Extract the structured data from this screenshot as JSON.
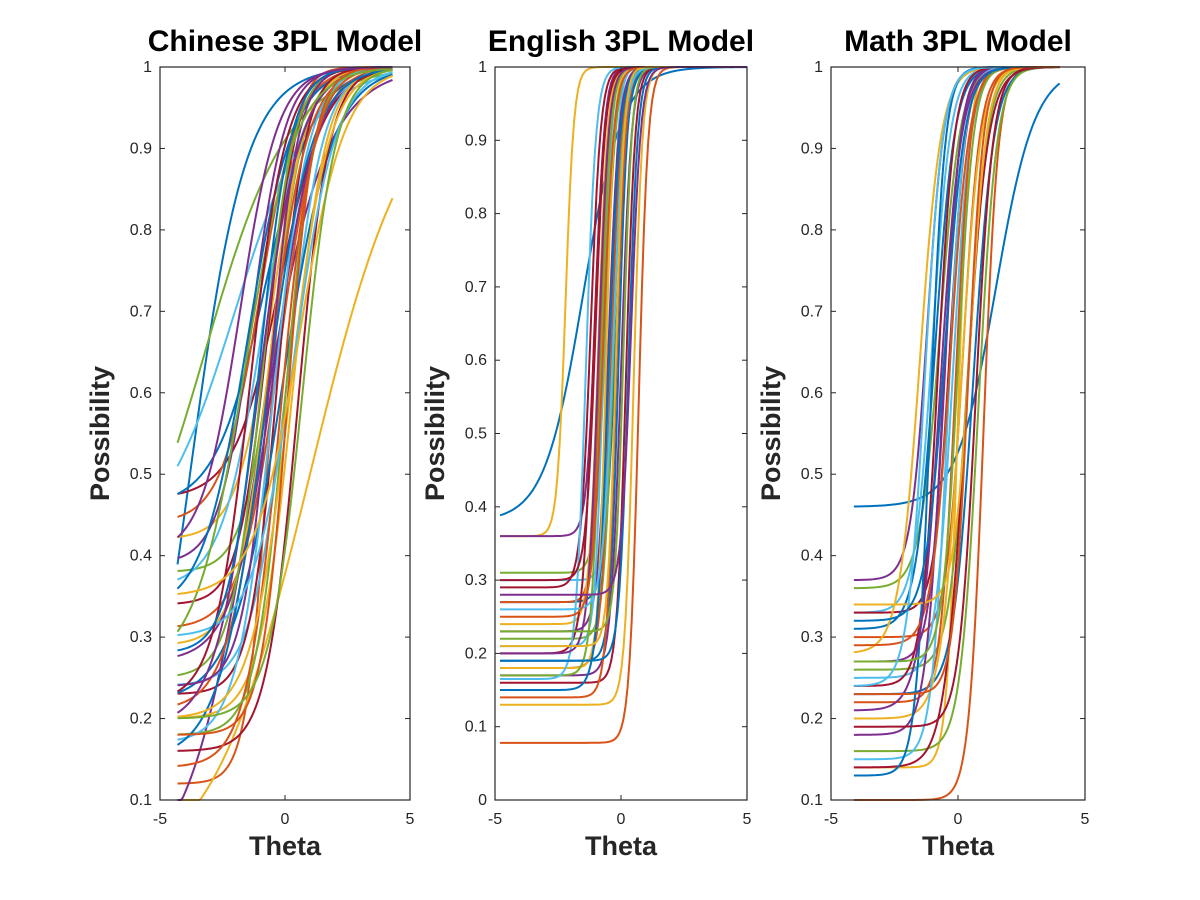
{
  "chart_data": [
    {
      "type": "line",
      "title": "Chinese 3PL Model",
      "xlabel": "Theta",
      "ylabel": "Possibility",
      "xlim": [
        -5,
        5
      ],
      "ylim": [
        0.1,
        1
      ],
      "xticks": [
        -5,
        0,
        5
      ],
      "yticks": [
        0.1,
        0.2,
        0.3,
        0.4,
        0.5,
        0.6,
        0.7,
        0.8,
        0.9,
        1
      ],
      "ytick_labels": [
        "0.1",
        "0.2",
        "0.3",
        "0.4",
        "0.5",
        "0.6",
        "0.7",
        "0.8",
        "0.9",
        "1"
      ],
      "grid": false,
      "x_range": [
        -4.3,
        4.3
      ],
      "series_model": "P(theta) = c + (1 - c) / (1 + exp(-a * (theta - b)))",
      "series": [
        {
          "a": 0.9,
          "b": -3.8,
          "c": 0.0
        },
        {
          "a": 2.2,
          "b": -0.6,
          "c": 0.12
        },
        {
          "a": 0.5,
          "b": 1.0,
          "c": 0.0
        },
        {
          "a": 0.75,
          "b": -1.2,
          "c": 0.0
        },
        {
          "a": 0.6,
          "b": -3.2,
          "c": 0.3
        },
        {
          "a": 0.65,
          "b": -2.0,
          "c": 0.4
        },
        {
          "a": 1.1,
          "b": -0.2,
          "c": 0.47
        },
        {
          "a": 1.0,
          "b": -0.8,
          "c": 0.46
        },
        {
          "a": 1.3,
          "b": -1.0,
          "c": 0.44
        },
        {
          "a": 1.4,
          "b": -0.5,
          "c": 0.42
        },
        {
          "a": 1.5,
          "b": -1.3,
          "c": 0.39
        },
        {
          "a": 1.6,
          "b": -0.4,
          "c": 0.38
        },
        {
          "a": 1.2,
          "b": -0.9,
          "c": 0.36
        },
        {
          "a": 1.7,
          "b": -0.7,
          "c": 0.34
        },
        {
          "a": 1.1,
          "b": -1.5,
          "c": 0.33
        },
        {
          "a": 1.3,
          "b": -0.2,
          "c": 0.31
        },
        {
          "a": 1.5,
          "b": -0.6,
          "c": 0.29
        },
        {
          "a": 1.2,
          "b": -0.4,
          "c": 0.27
        },
        {
          "a": 1.6,
          "b": -0.9,
          "c": 0.25
        },
        {
          "a": 1.4,
          "b": 0.1,
          "c": 0.24
        },
        {
          "a": 1.8,
          "b": -0.3,
          "c": 0.23
        },
        {
          "a": 1.0,
          "b": -0.1,
          "c": 0.22
        },
        {
          "a": 1.3,
          "b": -0.7,
          "c": 0.21
        },
        {
          "a": 1.5,
          "b": 0.3,
          "c": 0.2
        },
        {
          "a": 1.2,
          "b": -1.1,
          "c": 0.19
        },
        {
          "a": 1.7,
          "b": 0.0,
          "c": 0.18
        },
        {
          "a": 1.4,
          "b": -0.5,
          "c": 0.17
        },
        {
          "a": 1.6,
          "b": 0.5,
          "c": 0.16
        },
        {
          "a": 1.1,
          "b": -0.8,
          "c": 0.15
        },
        {
          "a": 1.5,
          "b": -0.2,
          "c": 0.14
        },
        {
          "a": 1.3,
          "b": 0.2,
          "c": 0.2
        },
        {
          "a": 1.8,
          "b": -0.6,
          "c": 0.24
        },
        {
          "a": 1.0,
          "b": -1.6,
          "c": 0.26
        },
        {
          "a": 1.2,
          "b": 0.4,
          "c": 0.3
        },
        {
          "a": 1.4,
          "b": -1.4,
          "c": 0.22
        },
        {
          "a": 1.6,
          "b": -1.0,
          "c": 0.28
        },
        {
          "a": 1.9,
          "b": 0.1,
          "c": 0.18
        },
        {
          "a": 1.1,
          "b": 0.6,
          "c": 0.35
        },
        {
          "a": 1.3,
          "b": -1.8,
          "c": 0.4
        },
        {
          "a": 1.5,
          "b": 0.7,
          "c": 0.2
        }
      ]
    },
    {
      "type": "line",
      "title": "English 3PL Model",
      "xlabel": "Theta",
      "ylabel": "Possibility",
      "xlim": [
        -5,
        5
      ],
      "ylim": [
        0,
        1
      ],
      "xticks": [
        -5,
        0,
        5
      ],
      "yticks": [
        0,
        0.1,
        0.2,
        0.3,
        0.4,
        0.5,
        0.6,
        0.7,
        0.8,
        0.9,
        1
      ],
      "ytick_labels": [
        "0",
        "0.1",
        "0.2",
        "0.3",
        "0.4",
        "0.5",
        "0.6",
        "0.7",
        "0.8",
        "0.9",
        "1"
      ],
      "grid": false,
      "x_range": [
        -4.8,
        5.0
      ],
      "series_model": "P(theta) = c + (1 - c) / (1 + exp(-a * (theta - b)))",
      "series": [
        {
          "a": 1.3,
          "b": -1.5,
          "c": 0.38
        },
        {
          "a": 5.5,
          "b": 0.7,
          "c": 0.078
        },
        {
          "a": 6.0,
          "b": -2.2,
          "c": 0.36
        },
        {
          "a": 5.5,
          "b": -1.0,
          "c": 0.36
        },
        {
          "a": 5.0,
          "b": -0.6,
          "c": 0.31
        },
        {
          "a": 6.5,
          "b": -0.4,
          "c": 0.3
        },
        {
          "a": 5.0,
          "b": -1.2,
          "c": 0.29
        },
        {
          "a": 4.5,
          "b": -0.2,
          "c": 0.27
        },
        {
          "a": 6.0,
          "b": -0.8,
          "c": 0.27
        },
        {
          "a": 5.5,
          "b": -0.9,
          "c": 0.24
        },
        {
          "a": 4.8,
          "b": -0.5,
          "c": 0.23
        },
        {
          "a": 5.2,
          "b": -0.3,
          "c": 0.22
        },
        {
          "a": 6.2,
          "b": -0.7,
          "c": 0.21
        },
        {
          "a": 4.6,
          "b": -1.1,
          "c": 0.2
        },
        {
          "a": 5.8,
          "b": -0.1,
          "c": 0.19
        },
        {
          "a": 5.0,
          "b": -0.4,
          "c": 0.18
        },
        {
          "a": 6.4,
          "b": -0.6,
          "c": 0.18
        },
        {
          "a": 4.9,
          "b": 0.0,
          "c": 0.17
        },
        {
          "a": 5.3,
          "b": -0.8,
          "c": 0.17
        },
        {
          "a": 5.0,
          "b": -1.4,
          "c": 0.165
        },
        {
          "a": 5.6,
          "b": 0.2,
          "c": 0.16
        },
        {
          "a": 4.5,
          "b": -0.5,
          "c": 0.15
        },
        {
          "a": 5.4,
          "b": -0.2,
          "c": 0.14
        },
        {
          "a": 5.8,
          "b": 0.5,
          "c": 0.13
        },
        {
          "a": 5.0,
          "b": -0.9,
          "c": 0.2
        },
        {
          "a": 6.0,
          "b": 0.1,
          "c": 0.23
        },
        {
          "a": 4.7,
          "b": -0.3,
          "c": 0.26
        },
        {
          "a": 5.2,
          "b": -1.0,
          "c": 0.3
        },
        {
          "a": 5.5,
          "b": 0.3,
          "c": 0.19
        },
        {
          "a": 4.8,
          "b": -0.7,
          "c": 0.25
        },
        {
          "a": 6.3,
          "b": -0.2,
          "c": 0.21
        },
        {
          "a": 5.1,
          "b": 0.4,
          "c": 0.28
        }
      ]
    },
    {
      "type": "line",
      "title": "Math 3PL Model",
      "xlabel": "Theta",
      "ylabel": "Possibility",
      "xlim": [
        -5,
        5
      ],
      "ylim": [
        0.1,
        1
      ],
      "xticks": [
        -5,
        0,
        5
      ],
      "yticks": [
        0.1,
        0.2,
        0.3,
        0.4,
        0.5,
        0.6,
        0.7,
        0.8,
        0.9,
        1
      ],
      "ytick_labels": [
        "0.1",
        "0.2",
        "0.3",
        "0.4",
        "0.5",
        "0.6",
        "0.7",
        "0.8",
        "0.9",
        "1"
      ],
      "grid": false,
      "x_range": [
        -4.1,
        4.0
      ],
      "series_model": "P(theta) = c + (1 - c) / (1 + exp(-a * (theta - b)))",
      "series": [
        {
          "a": 1.3,
          "b": 1.5,
          "c": 0.46
        },
        {
          "a": 3.5,
          "b": 1.0,
          "c": 0.1
        },
        {
          "a": 4.5,
          "b": 0.0,
          "c": 0.14
        },
        {
          "a": 3.0,
          "b": -1.2,
          "c": 0.37
        },
        {
          "a": 2.5,
          "b": -0.7,
          "c": 0.36
        },
        {
          "a": 2.8,
          "b": -1.0,
          "c": 0.33
        },
        {
          "a": 3.2,
          "b": -0.3,
          "c": 0.33
        },
        {
          "a": 2.6,
          "b": -0.9,
          "c": 0.31
        },
        {
          "a": 3.0,
          "b": 0.2,
          "c": 0.3
        },
        {
          "a": 2.4,
          "b": -1.5,
          "c": 0.28
        },
        {
          "a": 3.3,
          "b": -0.5,
          "c": 0.27
        },
        {
          "a": 2.7,
          "b": 0.4,
          "c": 0.26
        },
        {
          "a": 2.9,
          "b": -0.2,
          "c": 0.25
        },
        {
          "a": 3.1,
          "b": -0.8,
          "c": 0.24
        },
        {
          "a": 2.5,
          "b": 0.6,
          "c": 0.23
        },
        {
          "a": 3.4,
          "b": -0.1,
          "c": 0.22
        },
        {
          "a": 2.6,
          "b": 0.1,
          "c": 0.2
        },
        {
          "a": 3.0,
          "b": -0.6,
          "c": 0.18
        },
        {
          "a": 2.8,
          "b": 0.8,
          "c": 0.16
        },
        {
          "a": 3.2,
          "b": -0.4,
          "c": 0.15
        },
        {
          "a": 2.4,
          "b": 0.3,
          "c": 0.14
        },
        {
          "a": 3.5,
          "b": -1.1,
          "c": 0.13
        },
        {
          "a": 2.7,
          "b": -0.3,
          "c": 0.29
        },
        {
          "a": 3.1,
          "b": 0.5,
          "c": 0.34
        },
        {
          "a": 2.5,
          "b": -0.7,
          "c": 0.21
        },
        {
          "a": 3.3,
          "b": 0.0,
          "c": 0.27
        },
        {
          "a": 2.9,
          "b": -1.3,
          "c": 0.24
        },
        {
          "a": 3.0,
          "b": 0.7,
          "c": 0.19
        },
        {
          "a": 2.6,
          "b": -0.5,
          "c": 0.32
        },
        {
          "a": 3.4,
          "b": 0.4,
          "c": 0.23
        }
      ]
    }
  ],
  "line_colors": [
    "#0072bd",
    "#d95319",
    "#edb120",
    "#7e2f8e",
    "#77ac30",
    "#4dbeee",
    "#a2142f"
  ]
}
